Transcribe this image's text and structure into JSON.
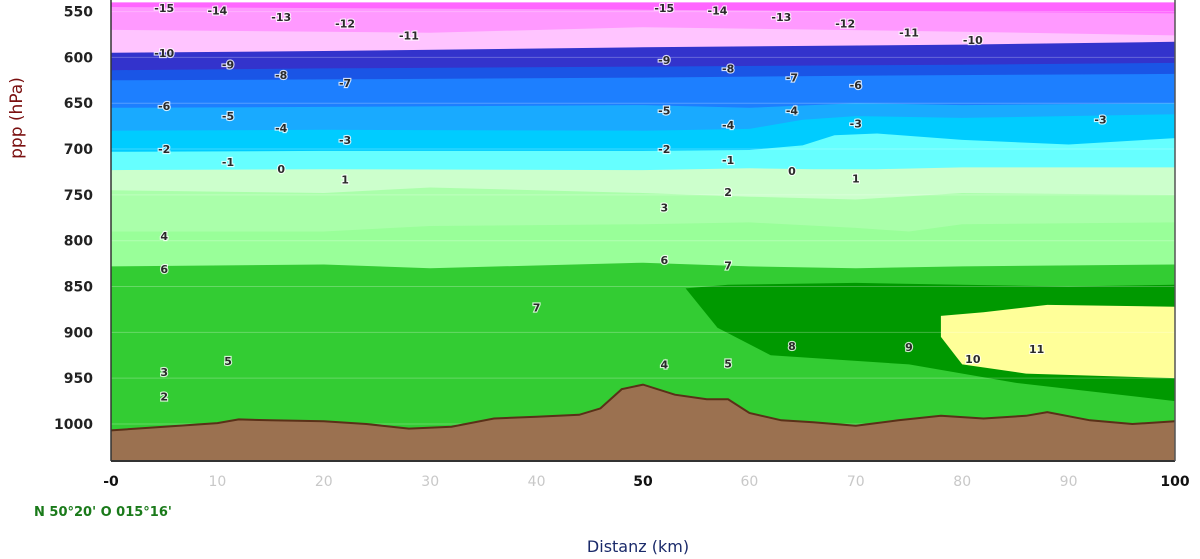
{
  "chart_data": {
    "type": "heatmap",
    "subtype": "vertical cross-section (contour fill)",
    "xlabel": "Distanz (km)",
    "ylabel": "ppp (hPa)",
    "xlim": [
      0,
      100
    ],
    "ylim": [
      1045,
      540
    ],
    "x_ticks": [
      "-0",
      "10",
      "20",
      "30",
      "40",
      "50",
      "60",
      "70",
      "80",
      "90",
      "100"
    ],
    "x_tick_values": [
      0,
      10,
      20,
      30,
      40,
      50,
      60,
      70,
      80,
      90,
      100
    ],
    "y_ticks": [
      "550",
      "600",
      "650",
      "700",
      "750",
      "800",
      "850",
      "900",
      "950",
      "1000"
    ],
    "y_tick_values": [
      550,
      600,
      650,
      700,
      750,
      800,
      850,
      900,
      950,
      1000
    ],
    "location": "N 50°20' O 015°16'",
    "grid": true,
    "colors": {
      "background": "#ffffff",
      "terrain": "#9b7150",
      "terrain_edge": "#5a3018",
      "axis": "#333333"
    },
    "bands": [
      {
        "temp": "-14",
        "color": "#ff66ff",
        "top": [
          [
            0,
            540
          ],
          [
            100,
            540
          ]
        ]
      },
      {
        "temp": "-13",
        "color": "#ff99ff",
        "top": [
          [
            0,
            545
          ],
          [
            50,
            548
          ],
          [
            100,
            552
          ]
        ]
      },
      {
        "temp": "-12",
        "color": "#ffc4ff",
        "top": [
          [
            0,
            570
          ],
          [
            30,
            573
          ],
          [
            50,
            567
          ],
          [
            80,
            572
          ],
          [
            100,
            576
          ]
        ]
      },
      {
        "temp": "-10",
        "color": "#3333cc",
        "top": [
          [
            0,
            595
          ],
          [
            20,
            593
          ],
          [
            50,
            589
          ],
          [
            80,
            586
          ],
          [
            100,
            583
          ]
        ]
      },
      {
        "temp": "-9",
        "color": "#1a55e6",
        "top": [
          [
            0,
            614
          ],
          [
            20,
            612
          ],
          [
            50,
            610
          ],
          [
            80,
            608
          ],
          [
            100,
            606
          ]
        ]
      },
      {
        "temp": "-7",
        "color": "#1d7fff",
        "top": [
          [
            0,
            625
          ],
          [
            20,
            624
          ],
          [
            50,
            622
          ],
          [
            70,
            620
          ],
          [
            100,
            618
          ]
        ]
      },
      {
        "temp": "-5",
        "color": "#19aaff",
        "top": [
          [
            0,
            655
          ],
          [
            20,
            654
          ],
          [
            50,
            652
          ],
          [
            60,
            655
          ],
          [
            70,
            650
          ],
          [
            80,
            652
          ],
          [
            100,
            650
          ]
        ]
      },
      {
        "temp": "-3",
        "color": "#00ccff",
        "top": [
          [
            0,
            680
          ],
          [
            20,
            679
          ],
          [
            50,
            680
          ],
          [
            60,
            678
          ],
          [
            65,
            668
          ],
          [
            70,
            664
          ],
          [
            80,
            666
          ],
          [
            100,
            662
          ]
        ]
      },
      {
        "temp": "-1",
        "color": "#66ffff",
        "top": [
          [
            0,
            703
          ],
          [
            20,
            702
          ],
          [
            50,
            702
          ],
          [
            60,
            701
          ],
          [
            65,
            696
          ],
          [
            68,
            685
          ],
          [
            72,
            683
          ],
          [
            80,
            690
          ],
          [
            90,
            695
          ],
          [
            100,
            688
          ]
        ]
      },
      {
        "temp": "1",
        "color": "#ccffcc",
        "top": [
          [
            0,
            723
          ],
          [
            20,
            722
          ],
          [
            50,
            723
          ],
          [
            60,
            721
          ],
          [
            66,
            722
          ],
          [
            72,
            722
          ],
          [
            80,
            720
          ],
          [
            100,
            720
          ]
        ]
      },
      {
        "temp": "2",
        "color": "#aaffaa",
        "top": [
          [
            0,
            745
          ],
          [
            20,
            748
          ],
          [
            30,
            742
          ],
          [
            50,
            748
          ],
          [
            60,
            752
          ],
          [
            70,
            755
          ],
          [
            80,
            748
          ],
          [
            100,
            750
          ]
        ]
      },
      {
        "temp": "4",
        "color": "#99ff99",
        "top": [
          [
            0,
            790
          ],
          [
            20,
            790
          ],
          [
            30,
            784
          ],
          [
            50,
            782
          ],
          [
            60,
            780
          ],
          [
            70,
            786
          ],
          [
            75,
            790
          ],
          [
            80,
            782
          ],
          [
            100,
            780
          ]
        ]
      },
      {
        "temp": "6",
        "color": "#33cc33",
        "top": [
          [
            0,
            828
          ],
          [
            20,
            826
          ],
          [
            30,
            830
          ],
          [
            50,
            824
          ],
          [
            60,
            828
          ],
          [
            70,
            830
          ],
          [
            80,
            828
          ],
          [
            100,
            826
          ]
        ]
      },
      {
        "temp": "8",
        "color": "#009900",
        "top": [
          [
            54,
            852
          ],
          [
            58,
            848
          ],
          [
            70,
            846
          ],
          [
            80,
            848
          ],
          [
            90,
            850
          ],
          [
            100,
            848
          ]
        ]
      },
      {
        "temp": "10",
        "color": "#ffff99",
        "top": [
          [
            78,
            882
          ],
          [
            82,
            878
          ],
          [
            88,
            870
          ],
          [
            100,
            872
          ]
        ]
      }
    ],
    "terrain_profile": [
      [
        0,
        1007
      ],
      [
        5,
        1003
      ],
      [
        10,
        999
      ],
      [
        12,
        995
      ],
      [
        15,
        996
      ],
      [
        20,
        997
      ],
      [
        24,
        1000
      ],
      [
        28,
        1005
      ],
      [
        32,
        1003
      ],
      [
        36,
        994
      ],
      [
        40,
        992
      ],
      [
        44,
        990
      ],
      [
        46,
        983
      ],
      [
        48,
        962
      ],
      [
        50,
        957
      ],
      [
        53,
        968
      ],
      [
        56,
        973
      ],
      [
        58,
        973
      ],
      [
        60,
        988
      ],
      [
        63,
        996
      ],
      [
        66,
        998
      ],
      [
        70,
        1002
      ],
      [
        74,
        996
      ],
      [
        78,
        991
      ],
      [
        82,
        994
      ],
      [
        86,
        991
      ],
      [
        88,
        987
      ],
      [
        92,
        996
      ],
      [
        96,
        1000
      ],
      [
        100,
        997
      ]
    ],
    "contour_labels": [
      {
        "x": 5,
        "p": 546,
        "text": "-15"
      },
      {
        "x": 10,
        "p": 549,
        "text": "-14"
      },
      {
        "x": 16,
        "p": 556,
        "text": "-13"
      },
      {
        "x": 22,
        "p": 563,
        "text": "-12"
      },
      {
        "x": 28,
        "p": 576,
        "text": "-11"
      },
      {
        "x": 5,
        "p": 595,
        "text": "-10"
      },
      {
        "x": 11,
        "p": 608,
        "text": "-9"
      },
      {
        "x": 16,
        "p": 619,
        "text": "-8"
      },
      {
        "x": 22,
        "p": 628,
        "text": "-7"
      },
      {
        "x": 5,
        "p": 653,
        "text": "-6"
      },
      {
        "x": 11,
        "p": 664,
        "text": "-5"
      },
      {
        "x": 16,
        "p": 677,
        "text": "-4"
      },
      {
        "x": 22,
        "p": 690,
        "text": "-3"
      },
      {
        "x": 5,
        "p": 700,
        "text": "-2"
      },
      {
        "x": 11,
        "p": 714,
        "text": "-1"
      },
      {
        "x": 16,
        "p": 722,
        "text": "0"
      },
      {
        "x": 22,
        "p": 733,
        "text": "1"
      },
      {
        "x": 5,
        "p": 795,
        "text": "4"
      },
      {
        "x": 5,
        "p": 831,
        "text": "6"
      },
      {
        "x": 40,
        "p": 873,
        "text": "7"
      },
      {
        "x": 11,
        "p": 931,
        "text": "5"
      },
      {
        "x": 5,
        "p": 943,
        "text": "3"
      },
      {
        "x": 5,
        "p": 970,
        "text": "2"
      },
      {
        "x": 52,
        "p": 546,
        "text": "-15"
      },
      {
        "x": 57,
        "p": 549,
        "text": "-14"
      },
      {
        "x": 63,
        "p": 556,
        "text": "-13"
      },
      {
        "x": 69,
        "p": 563,
        "text": "-12"
      },
      {
        "x": 75,
        "p": 573,
        "text": "-11"
      },
      {
        "x": 81,
        "p": 581,
        "text": "-10"
      },
      {
        "x": 52,
        "p": 603,
        "text": "-9"
      },
      {
        "x": 58,
        "p": 612,
        "text": "-8"
      },
      {
        "x": 64,
        "p": 622,
        "text": "-7"
      },
      {
        "x": 70,
        "p": 630,
        "text": "-6"
      },
      {
        "x": 52,
        "p": 658,
        "text": "-5"
      },
      {
        "x": 58,
        "p": 674,
        "text": "-4"
      },
      {
        "x": 64,
        "p": 658,
        "text": "-4"
      },
      {
        "x": 70,
        "p": 672,
        "text": "-3"
      },
      {
        "x": 93,
        "p": 668,
        "text": "-3"
      },
      {
        "x": 52,
        "p": 700,
        "text": "-2"
      },
      {
        "x": 58,
        "p": 712,
        "text": "-1"
      },
      {
        "x": 64,
        "p": 724,
        "text": "0"
      },
      {
        "x": 70,
        "p": 732,
        "text": "1"
      },
      {
        "x": 58,
        "p": 747,
        "text": "2"
      },
      {
        "x": 52,
        "p": 764,
        "text": "3"
      },
      {
        "x": 52,
        "p": 821,
        "text": "6"
      },
      {
        "x": 58,
        "p": 827,
        "text": "7"
      },
      {
        "x": 64,
        "p": 915,
        "text": "8"
      },
      {
        "x": 75,
        "p": 916,
        "text": "9"
      },
      {
        "x": 81,
        "p": 929,
        "text": "10"
      },
      {
        "x": 87,
        "p": 918,
        "text": "11"
      },
      {
        "x": 52,
        "p": 935,
        "text": "4"
      },
      {
        "x": 58,
        "p": 934,
        "text": "5"
      }
    ]
  }
}
